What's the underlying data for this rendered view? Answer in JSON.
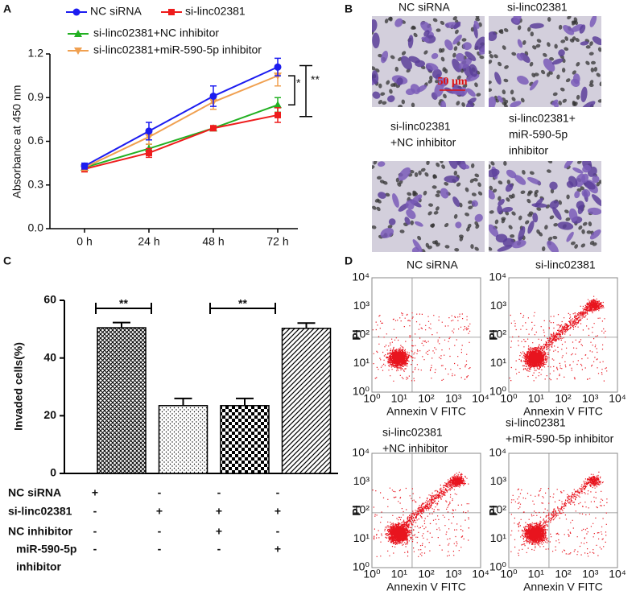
{
  "panel_labels": [
    "A",
    "B",
    "C",
    "D"
  ],
  "chart_data": [
    {
      "type": "line",
      "categories": [
        "0 h",
        "24 h",
        "48 h",
        "72 h"
      ],
      "y_label": "Absorbance at 450 nm",
      "ylim": [
        0,
        1.2
      ],
      "yticks": [
        {
          "value": 0,
          "label": "0.0"
        },
        0.3,
        0.6,
        0.9,
        1.2
      ],
      "series": [
        {
          "name": "NC siRNA",
          "color": "#1c1cf0",
          "values": [
            0.43,
            0.67,
            0.91,
            1.11
          ],
          "errors": [
            0.02,
            0.06,
            0.07,
            0.06
          ]
        },
        {
          "name": "si-linc02381",
          "color": "#ee1c1c",
          "values": [
            0.41,
            0.52,
            0.69,
            0.78
          ],
          "errors": [
            0.02,
            0.03,
            0.01,
            0.05
          ]
        },
        {
          "name": "si-linc02381+NC inhibitor",
          "color": "#22b022",
          "values": [
            0.42,
            0.55,
            0.69,
            0.85
          ],
          "errors": [
            0.02,
            0.03,
            0.01,
            0.05
          ]
        },
        {
          "name": "si-linc02381+miR-590-5p inhibitor",
          "color": "#f0a050",
          "values": [
            0.42,
            0.63,
            0.87,
            1.05
          ],
          "errors": [
            0.02,
            0.05,
            0.05,
            0.07
          ]
        }
      ],
      "annotations": [
        "*",
        "**"
      ]
    },
    {
      "type": "bar",
      "y_label": "Invaded cells(%)",
      "values": [
        50.5,
        23.5,
        23.5,
        50.3
      ],
      "errors": [
        1.8,
        2.5,
        2.5,
        1.8
      ],
      "ylim": [
        0,
        60
      ],
      "yticks": [
        0,
        20,
        40,
        60
      ],
      "annotations": [
        "**",
        "**"
      ],
      "condition_table": [
        {
          "label": [
            "NC siRNA"
          ],
          "marks": [
            "+",
            "-",
            "-",
            "-"
          ]
        },
        {
          "label": [
            "si-linc02381"
          ],
          "marks": [
            "-",
            "+",
            "+",
            "+"
          ]
        },
        {
          "label": [
            "NC inhibitor"
          ],
          "marks": [
            "-",
            "-",
            "+",
            "-"
          ]
        },
        {
          "label": [
            "miR-590-5p",
            "inhibitor"
          ],
          "marks": [
            "-",
            "-",
            "-",
            "+"
          ]
        }
      ]
    }
  ],
  "micrographs": {
    "titles": [
      [
        "NC siRNA"
      ],
      [
        "si-linc02381"
      ],
      [
        "si-linc02381",
        "+NC inhibitor"
      ],
      [
        "si-linc02381+",
        "miR-590-5p",
        "inhibitor"
      ]
    ],
    "scale_bar": "50 μm"
  },
  "flow_cytometry": {
    "titles": [
      [
        "NC siRNA"
      ],
      [
        "si-linc02381"
      ],
      [
        "si-linc02381",
        "+NC inhibitor"
      ],
      [
        "si-linc02381",
        "+miR-590-5p inhibitor"
      ]
    ],
    "x_label": "Annexin V FITC",
    "y_label": "PI",
    "axis_ticks": [
      "10⁰",
      "10¹",
      "10²",
      "10³",
      "10⁴"
    ]
  }
}
